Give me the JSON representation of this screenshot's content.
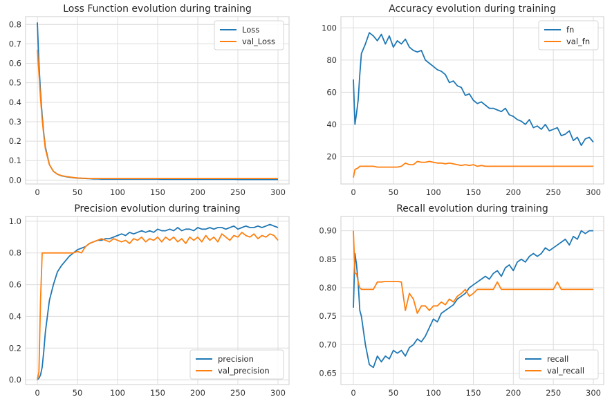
{
  "colors": {
    "series1": "#1f77b4",
    "series2": "#ff7f0e",
    "grid": "#dcdcdc",
    "spine": "#cccccc"
  },
  "chart_data": [
    {
      "type": "line",
      "title": "Loss Function evolution during training",
      "xlim": [
        0,
        300
      ],
      "ylim": [
        -0.02,
        0.84
      ],
      "xticks": [
        0,
        50,
        100,
        150,
        200,
        250,
        300
      ],
      "xtick_labels": [
        "0",
        "50",
        "100",
        "150",
        "200",
        "250",
        "300"
      ],
      "yticks": [
        0,
        0.1,
        0.2,
        0.3,
        0.4,
        0.5,
        0.6,
        0.7,
        0.8
      ],
      "ytick_labels": [
        "0.0",
        "0.1",
        "0.2",
        "0.3",
        "0.4",
        "0.5",
        "0.6",
        "0.7",
        "0.8"
      ],
      "grid": true,
      "legend": "top-right",
      "x": [
        0,
        2,
        4,
        6,
        8,
        10,
        15,
        20,
        25,
        30,
        35,
        40,
        45,
        50,
        55,
        60,
        65,
        70,
        75,
        80,
        85,
        90,
        95,
        100,
        105,
        110,
        115,
        120,
        125,
        130,
        135,
        140,
        145,
        150,
        155,
        160,
        165,
        170,
        175,
        180,
        185,
        190,
        195,
        200,
        205,
        210,
        215,
        220,
        225,
        230,
        235,
        240,
        245,
        250,
        255,
        260,
        265,
        270,
        275,
        280,
        285,
        290,
        295,
        300
      ],
      "series": [
        {
          "name": "Loss",
          "values": [
            0.81,
            0.6,
            0.45,
            0.33,
            0.24,
            0.17,
            0.08,
            0.045,
            0.03,
            0.022,
            0.018,
            0.015,
            0.012,
            0.01,
            0.009,
            0.008,
            0.007,
            0.006,
            0.006,
            0.005,
            0.005,
            0.005,
            0.005,
            0.005,
            0.005,
            0.005,
            0.005,
            0.005,
            0.005,
            0.005,
            0.005,
            0.005,
            0.005,
            0.005,
            0.004,
            0.004,
            0.004,
            0.004,
            0.004,
            0.004,
            0.004,
            0.004,
            0.004,
            0.004,
            0.004,
            0.004,
            0.004,
            0.004,
            0.004,
            0.004,
            0.004,
            0.004,
            0.004,
            0.003,
            0.003,
            0.003,
            0.003,
            0.003,
            0.003,
            0.003,
            0.003,
            0.003,
            0.003,
            0.003
          ]
        },
        {
          "name": "val_Loss",
          "values": [
            0.67,
            0.55,
            0.42,
            0.31,
            0.23,
            0.16,
            0.08,
            0.045,
            0.03,
            0.023,
            0.019,
            0.016,
            0.013,
            0.011,
            0.01,
            0.009,
            0.008,
            0.008,
            0.008,
            0.008,
            0.008,
            0.008,
            0.008,
            0.008,
            0.008,
            0.008,
            0.008,
            0.008,
            0.008,
            0.008,
            0.008,
            0.008,
            0.008,
            0.008,
            0.008,
            0.008,
            0.008,
            0.008,
            0.008,
            0.008,
            0.008,
            0.008,
            0.008,
            0.008,
            0.008,
            0.008,
            0.008,
            0.008,
            0.008,
            0.008,
            0.008,
            0.008,
            0.008,
            0.008,
            0.008,
            0.008,
            0.008,
            0.008,
            0.008,
            0.008,
            0.008,
            0.008,
            0.008,
            0.008
          ]
        }
      ]
    },
    {
      "type": "line",
      "title": "Accuracy evolution during training",
      "xlim": [
        0,
        300
      ],
      "ylim": [
        3,
        107
      ],
      "xticks": [
        0,
        50,
        100,
        150,
        200,
        250,
        300
      ],
      "xtick_labels": [
        "0",
        "50",
        "100",
        "150",
        "200",
        "250",
        "300"
      ],
      "yticks": [
        20,
        40,
        60,
        80,
        100
      ],
      "ytick_labels": [
        "20",
        "40",
        "60",
        "80",
        "100"
      ],
      "grid": true,
      "legend": "top-right",
      "x": [
        0,
        2,
        4,
        6,
        8,
        10,
        15,
        20,
        25,
        30,
        35,
        40,
        45,
        50,
        55,
        60,
        65,
        70,
        75,
        80,
        85,
        90,
        95,
        100,
        105,
        110,
        115,
        120,
        125,
        130,
        135,
        140,
        145,
        150,
        155,
        160,
        165,
        170,
        175,
        180,
        185,
        190,
        195,
        200,
        205,
        210,
        215,
        220,
        225,
        230,
        235,
        240,
        245,
        250,
        255,
        260,
        265,
        270,
        275,
        280,
        285,
        290,
        295,
        300
      ],
      "series": [
        {
          "name": "fn",
          "values": [
            68,
            40,
            47,
            55,
            71,
            84,
            90,
            97,
            95,
            92,
            96,
            90,
            95,
            88,
            92,
            90,
            93,
            88,
            86,
            85,
            86,
            80,
            78,
            76,
            74,
            73,
            71,
            66,
            67,
            64,
            63,
            58,
            59,
            55,
            53,
            54,
            52,
            50,
            50,
            49,
            48,
            50,
            46,
            45,
            43,
            42,
            40,
            43,
            38,
            39,
            37,
            40,
            36,
            37,
            38,
            33,
            34,
            36,
            30,
            32,
            27,
            31,
            32,
            29
          ]
        },
        {
          "name": "val_fn",
          "values": [
            7,
            12,
            12.5,
            13,
            14,
            14,
            14,
            14,
            14,
            13.5,
            13.5,
            13.5,
            13.5,
            13.5,
            13.5,
            14,
            16,
            15,
            15,
            17,
            16.5,
            16.5,
            17,
            16.5,
            16,
            16,
            15.5,
            16,
            15.5,
            15,
            14.5,
            15,
            14.5,
            15,
            14,
            14.5,
            14,
            14,
            14,
            14,
            14,
            14,
            14,
            14,
            14,
            14,
            14,
            14,
            14,
            14,
            14,
            14,
            14,
            14,
            14,
            14,
            14,
            14,
            14,
            14,
            14,
            14,
            14,
            14
          ]
        }
      ]
    },
    {
      "type": "line",
      "title": "Precision evolution during training",
      "xlim": [
        0,
        300
      ],
      "ylim": [
        -0.03,
        1.03
      ],
      "xticks": [
        0,
        50,
        100,
        150,
        200,
        250,
        300
      ],
      "xtick_labels": [
        "0",
        "50",
        "100",
        "150",
        "200",
        "250",
        "300"
      ],
      "yticks": [
        0,
        0.2,
        0.4,
        0.6,
        0.8,
        1.0
      ],
      "ytick_labels": [
        "0.0",
        "0.2",
        "0.4",
        "0.6",
        "0.8",
        "1.0"
      ],
      "grid": true,
      "legend": "bottom-right",
      "x": [
        0,
        2,
        4,
        6,
        8,
        10,
        15,
        20,
        25,
        30,
        35,
        40,
        45,
        50,
        55,
        60,
        65,
        70,
        75,
        80,
        85,
        90,
        95,
        100,
        105,
        110,
        115,
        120,
        125,
        130,
        135,
        140,
        145,
        150,
        155,
        160,
        165,
        170,
        175,
        180,
        185,
        190,
        195,
        200,
        205,
        210,
        215,
        220,
        225,
        230,
        235,
        240,
        245,
        250,
        255,
        260,
        265,
        270,
        275,
        280,
        285,
        290,
        295,
        300
      ],
      "series": [
        {
          "name": "precision",
          "values": [
            0,
            0.01,
            0.03,
            0.08,
            0.18,
            0.3,
            0.5,
            0.6,
            0.68,
            0.72,
            0.75,
            0.78,
            0.8,
            0.82,
            0.83,
            0.84,
            0.86,
            0.87,
            0.88,
            0.88,
            0.89,
            0.89,
            0.9,
            0.91,
            0.92,
            0.91,
            0.93,
            0.92,
            0.93,
            0.94,
            0.93,
            0.94,
            0.93,
            0.95,
            0.94,
            0.94,
            0.95,
            0.94,
            0.96,
            0.94,
            0.95,
            0.95,
            0.94,
            0.96,
            0.95,
            0.95,
            0.96,
            0.95,
            0.96,
            0.96,
            0.95,
            0.96,
            0.97,
            0.95,
            0.96,
            0.97,
            0.96,
            0.96,
            0.97,
            0.96,
            0.97,
            0.98,
            0.97,
            0.96
          ]
        },
        {
          "name": "val_precision",
          "values": [
            0,
            0.05,
            0.5,
            0.8,
            0.8,
            0.8,
            0.8,
            0.8,
            0.8,
            0.8,
            0.8,
            0.8,
            0.8,
            0.81,
            0.8,
            0.84,
            0.86,
            0.87,
            0.88,
            0.89,
            0.88,
            0.87,
            0.89,
            0.88,
            0.87,
            0.88,
            0.86,
            0.89,
            0.88,
            0.9,
            0.87,
            0.89,
            0.88,
            0.9,
            0.87,
            0.9,
            0.88,
            0.9,
            0.87,
            0.89,
            0.86,
            0.9,
            0.88,
            0.9,
            0.87,
            0.91,
            0.88,
            0.9,
            0.87,
            0.92,
            0.9,
            0.88,
            0.91,
            0.9,
            0.93,
            0.91,
            0.9,
            0.92,
            0.89,
            0.91,
            0.9,
            0.92,
            0.91,
            0.88
          ]
        }
      ]
    },
    {
      "type": "line",
      "title": "Recall evolution during training",
      "xlim": [
        0,
        300
      ],
      "ylim": [
        0.63,
        0.925
      ],
      "xticks": [
        0,
        50,
        100,
        150,
        200,
        250,
        300
      ],
      "xtick_labels": [
        "0",
        "50",
        "100",
        "150",
        "200",
        "250",
        "300"
      ],
      "yticks": [
        0.65,
        0.7,
        0.75,
        0.8,
        0.85,
        0.9
      ],
      "ytick_labels": [
        "0.65",
        "0.70",
        "0.75",
        "0.80",
        "0.85",
        "0.90"
      ],
      "grid": true,
      "legend": "bottom-right",
      "x": [
        0,
        2,
        4,
        6,
        8,
        10,
        15,
        20,
        25,
        30,
        35,
        40,
        45,
        50,
        55,
        60,
        65,
        70,
        75,
        80,
        85,
        90,
        95,
        100,
        105,
        110,
        115,
        120,
        125,
        130,
        135,
        140,
        145,
        150,
        155,
        160,
        165,
        170,
        175,
        180,
        185,
        190,
        195,
        200,
        205,
        210,
        215,
        220,
        225,
        230,
        235,
        240,
        245,
        250,
        255,
        260,
        265,
        270,
        275,
        280,
        285,
        290,
        295,
        300
      ],
      "series": [
        {
          "name": "recall",
          "values": [
            0.765,
            0.86,
            0.84,
            0.81,
            0.76,
            0.75,
            0.7,
            0.665,
            0.66,
            0.68,
            0.67,
            0.68,
            0.675,
            0.69,
            0.685,
            0.69,
            0.68,
            0.695,
            0.7,
            0.71,
            0.705,
            0.715,
            0.73,
            0.745,
            0.74,
            0.755,
            0.76,
            0.765,
            0.77,
            0.78,
            0.785,
            0.79,
            0.8,
            0.805,
            0.81,
            0.815,
            0.82,
            0.815,
            0.825,
            0.83,
            0.82,
            0.835,
            0.84,
            0.83,
            0.845,
            0.85,
            0.845,
            0.855,
            0.86,
            0.855,
            0.86,
            0.87,
            0.865,
            0.87,
            0.875,
            0.88,
            0.885,
            0.875,
            0.89,
            0.885,
            0.9,
            0.895,
            0.9,
            0.9
          ]
        },
        {
          "name": "val_recall",
          "values": [
            0.9,
            0.825,
            0.825,
            0.81,
            0.8,
            0.797,
            0.797,
            0.797,
            0.797,
            0.81,
            0.81,
            0.811,
            0.811,
            0.811,
            0.811,
            0.81,
            0.76,
            0.79,
            0.78,
            0.755,
            0.768,
            0.768,
            0.76,
            0.768,
            0.768,
            0.775,
            0.77,
            0.78,
            0.775,
            0.785,
            0.79,
            0.797,
            0.785,
            0.79,
            0.797,
            0.797,
            0.797,
            0.797,
            0.797,
            0.81,
            0.797,
            0.797,
            0.797,
            0.797,
            0.797,
            0.797,
            0.797,
            0.797,
            0.797,
            0.797,
            0.797,
            0.797,
            0.797,
            0.797,
            0.81,
            0.797,
            0.797,
            0.797,
            0.797,
            0.797,
            0.797,
            0.797,
            0.797,
            0.797
          ]
        }
      ]
    }
  ]
}
